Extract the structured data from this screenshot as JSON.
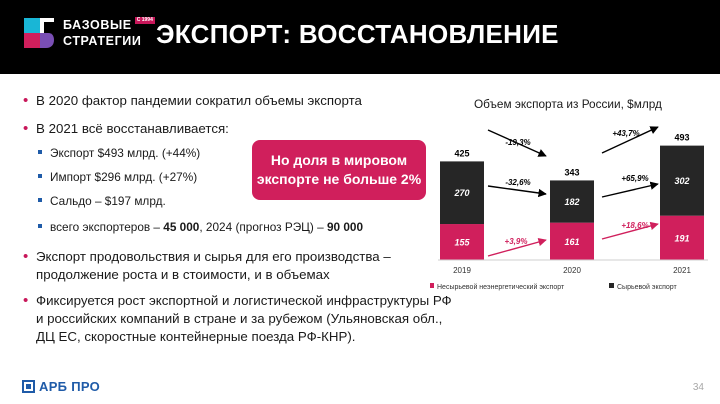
{
  "header": {
    "logo_line1": "БАЗОВЫЕ",
    "logo_line2": "СТРАТЕГИИ",
    "logo_sup": "С 1994",
    "title": "ЭКСПОРТ: ВОССТАНОВЛЕНИЕ"
  },
  "bullets": {
    "b1": "В 2020 фактор пандемии сократил объемы экспорта",
    "b2": "В 2021 всё восстанавливается:",
    "sub1": "Экспорт $493  млрд. (+44%)",
    "sub2": "Импорт  $296  млрд. (+27%)",
    "sub3": "Сальдо – $197 млрд.",
    "sub4_pre": "всего экспортеров – ",
    "sub4_b1": "45 000",
    "sub4_mid": ", 2024 (прогноз РЭЦ) – ",
    "sub4_b2": "90 000",
    "b3_l1": "Экспорт продовольствия и сырья для его производства –",
    "b3_l2": "продолжение роста и в стоимости, и в объемах",
    "b4_l1": "Фиксируется рост экспортной и логистической инфраструктуры РФ",
    "b4_l2": "и российских компаний в стране и за рубежом (Ульяновская обл.,",
    "b4_l3": "ДЦ ЕС, скоростные контейнерные поезда РФ-КНР)."
  },
  "callout": {
    "line1": "Но доля в мировом",
    "line2": "экспорте не больше 2%"
  },
  "chart_title": "Объем экспорта из России, $млрд",
  "chart_data": {
    "type": "bar",
    "stacked": true,
    "categories": [
      "2019",
      "2020",
      "2021"
    ],
    "series": [
      {
        "name": "Несырьевой неэнергетический экспорт",
        "values": [
          155,
          161,
          191
        ],
        "color": "#d01f5c"
      },
      {
        "name": "Сырьевой экспорт",
        "values": [
          270,
          182,
          302
        ],
        "color": "#262626"
      }
    ],
    "totals": [
      425,
      343,
      493
    ],
    "annotations": {
      "total_2019_2020": "-19,3%",
      "raw_2019_2020": "-32,6%",
      "nonraw_2019_2020": "+3,9%",
      "total_2020_2021": "+43,7%",
      "raw_2020_2021": "+65,9%",
      "nonraw_2020_2021": "+18,6%"
    },
    "legend_position": "bottom"
  },
  "footer": {
    "logo": "АРБ ПРО",
    "page": "34"
  },
  "colors": {
    "accent": "#d01f5c",
    "dark": "#262626",
    "blue": "#1f5ba8"
  }
}
